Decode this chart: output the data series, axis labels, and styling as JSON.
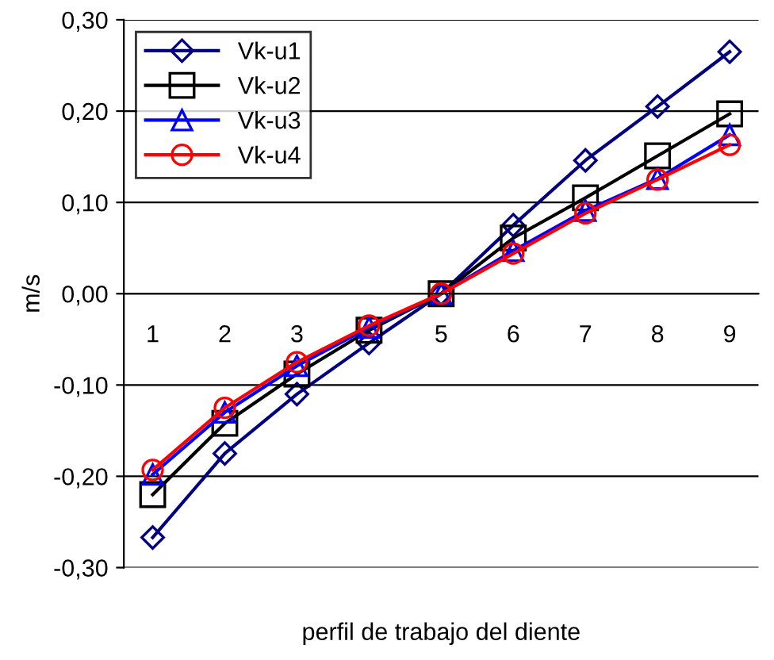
{
  "chart_data": {
    "type": "line",
    "xlabel": "perfil de trabajo del diente",
    "ylabel": "m/s",
    "categories": [
      "1",
      "2",
      "3",
      null,
      "5",
      "6",
      "7",
      "8",
      "9"
    ],
    "series": [
      {
        "name": "Vk-u1",
        "color": "#000080",
        "marker": "diamond",
        "values": [
          -0.267,
          -0.175,
          -0.11,
          -0.054,
          0.0,
          0.075,
          0.146,
          0.205,
          0.265
        ]
      },
      {
        "name": "Vk-u2",
        "color": "#000000",
        "marker": "square",
        "values": [
          -0.22,
          -0.142,
          -0.088,
          -0.04,
          0.0,
          0.061,
          0.105,
          0.151,
          0.197
        ]
      },
      {
        "name": "Vk-u3",
        "color": "#0000ff",
        "marker": "triangle",
        "values": [
          -0.198,
          -0.13,
          -0.079,
          -0.037,
          0.0,
          0.047,
          0.091,
          0.126,
          0.174
        ]
      },
      {
        "name": "Vk-u4",
        "color": "#ff0000",
        "marker": "circle",
        "values": [
          -0.193,
          -0.125,
          -0.075,
          -0.035,
          0.0,
          0.044,
          0.088,
          0.125,
          0.163
        ]
      }
    ],
    "ylim": [
      -0.3,
      0.3
    ],
    "yticks": [
      {
        "value": -0.3,
        "label": "-0,30"
      },
      {
        "value": -0.2,
        "label": "-0,20"
      },
      {
        "value": -0.1,
        "label": "-0,10"
      },
      {
        "value": 0,
        "label": "0,00"
      },
      {
        "value": 0.1,
        "label": "0,10"
      },
      {
        "value": 0.2,
        "label": "0,20"
      },
      {
        "value": 0.3,
        "label": "0,30"
      }
    ],
    "grid": "y",
    "legend": "top left"
  }
}
